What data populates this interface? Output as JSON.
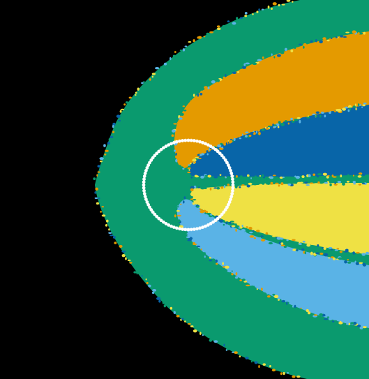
{
  "colors": {
    "background": "#000000",
    "outer_band": "#0a9a6e",
    "orange_lobe": "#e49a00",
    "dark_blue_lobe": "#0865a8",
    "yellow_lobe": "#efe144",
    "light_blue_lobe": "#5ab3e6",
    "circle": "#ffffff"
  }
}
